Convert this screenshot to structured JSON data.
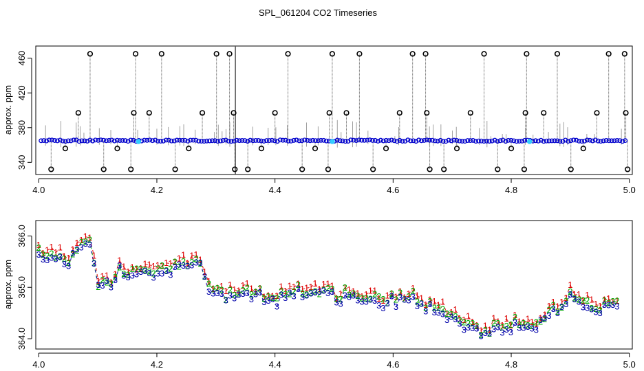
{
  "title": "SPL_061204  CO2 Timeseries",
  "colors": {
    "plot_frame": "#000000",
    "series1": "#dd0000",
    "series2": "#00aa00",
    "series3": "#0000aa",
    "raw_line": "#555555",
    "raw_point": "#0000cc",
    "highlight_point": "#33ccff",
    "outlier": "#000000"
  },
  "chart_data": [
    {
      "type": "scatter",
      "ylabel": "approx. ppm",
      "xlabel": "",
      "xlim": [
        3.995,
        5.005
      ],
      "ylim": [
        326,
        474
      ],
      "xticks": [
        "4.0",
        "4.2",
        "4.4",
        "4.6",
        "4.8",
        "5.0"
      ],
      "yticks": [
        "340",
        "380",
        "420",
        "460"
      ],
      "baseline_ppm": 365,
      "outliers": [
        {
          "x": 4.021,
          "y": 332
        },
        {
          "x": 4.045,
          "y": 356
        },
        {
          "x": 4.067,
          "y": 397
        },
        {
          "x": 4.087,
          "y": 465
        },
        {
          "x": 4.11,
          "y": 332
        },
        {
          "x": 4.133,
          "y": 356
        },
        {
          "x": 4.156,
          "y": 332
        },
        {
          "x": 4.161,
          "y": 397
        },
        {
          "x": 4.164,
          "y": 465
        },
        {
          "x": 4.187,
          "y": 397
        },
        {
          "x": 4.208,
          "y": 465
        },
        {
          "x": 4.231,
          "y": 332
        },
        {
          "x": 4.254,
          "y": 356
        },
        {
          "x": 4.277,
          "y": 397
        },
        {
          "x": 4.301,
          "y": 465
        },
        {
          "x": 4.323,
          "y": 465
        },
        {
          "x": 4.33,
          "y": 397
        },
        {
          "x": 4.332,
          "y": 332
        },
        {
          "x": 4.354,
          "y": 332
        },
        {
          "x": 4.377,
          "y": 356
        },
        {
          "x": 4.4,
          "y": 397
        },
        {
          "x": 4.422,
          "y": 465
        },
        {
          "x": 4.446,
          "y": 332
        },
        {
          "x": 4.468,
          "y": 356
        },
        {
          "x": 4.49,
          "y": 332
        },
        {
          "x": 4.492,
          "y": 397
        },
        {
          "x": 4.497,
          "y": 465
        },
        {
          "x": 4.521,
          "y": 397
        },
        {
          "x": 4.543,
          "y": 465
        },
        {
          "x": 4.566,
          "y": 332
        },
        {
          "x": 4.588,
          "y": 356
        },
        {
          "x": 4.611,
          "y": 397
        },
        {
          "x": 4.633,
          "y": 465
        },
        {
          "x": 4.655,
          "y": 465
        },
        {
          "x": 4.657,
          "y": 397
        },
        {
          "x": 4.662,
          "y": 332
        },
        {
          "x": 4.686,
          "y": 332
        },
        {
          "x": 4.708,
          "y": 356
        },
        {
          "x": 4.731,
          "y": 397
        },
        {
          "x": 4.754,
          "y": 465
        },
        {
          "x": 4.777,
          "y": 332
        },
        {
          "x": 4.8,
          "y": 356
        },
        {
          "x": 4.822,
          "y": 332
        },
        {
          "x": 4.824,
          "y": 397
        },
        {
          "x": 4.826,
          "y": 465
        },
        {
          "x": 4.855,
          "y": 397
        },
        {
          "x": 4.878,
          "y": 465
        },
        {
          "x": 4.901,
          "y": 332
        },
        {
          "x": 4.922,
          "y": 356
        },
        {
          "x": 4.945,
          "y": 397
        },
        {
          "x": 4.965,
          "y": 465
        },
        {
          "x": 4.992,
          "y": 465
        },
        {
          "x": 4.994,
          "y": 397
        },
        {
          "x": 4.997,
          "y": 332
        }
      ],
      "highlight_points": [
        {
          "x": 4.169,
          "y": 364
        },
        {
          "x": 4.497,
          "y": 364
        },
        {
          "x": 4.831,
          "y": 364
        }
      ]
    },
    {
      "type": "scatter",
      "ylabel": "approx. ppm",
      "xlabel": "",
      "xlim": [
        3.995,
        5.005
      ],
      "ylim": [
        363.8,
        366.3
      ],
      "xticks": [
        "4.0",
        "4.2",
        "4.4",
        "4.6",
        "4.8",
        "5.0"
      ],
      "yticks": [
        "364.0",
        "365.0",
        "366.0"
      ],
      "series": [
        {
          "marker": "1",
          "color": "#dd0000",
          "offset": 0.07
        },
        {
          "marker": "2",
          "color": "#00aa00",
          "offset": 0.0
        },
        {
          "marker": "3",
          "color": "#0000aa",
          "offset": -0.07
        }
      ],
      "trend": [
        [
          4.0,
          365.65
        ],
        [
          4.02,
          365.6
        ],
        [
          4.04,
          365.55
        ],
        [
          4.05,
          365.45
        ],
        [
          4.06,
          365.7
        ],
        [
          4.075,
          365.95
        ],
        [
          4.09,
          365.8
        ],
        [
          4.1,
          365.1
        ],
        [
          4.12,
          365.1
        ],
        [
          4.14,
          365.45
        ],
        [
          4.16,
          365.2
        ],
        [
          4.18,
          365.4
        ],
        [
          4.2,
          365.3
        ],
        [
          4.22,
          365.35
        ],
        [
          4.24,
          365.4
        ],
        [
          4.26,
          365.55
        ],
        [
          4.275,
          365.5
        ],
        [
          4.285,
          365.0
        ],
        [
          4.3,
          364.9
        ],
        [
          4.32,
          364.88
        ],
        [
          4.34,
          364.85
        ],
        [
          4.36,
          364.9
        ],
        [
          4.38,
          364.85
        ],
        [
          4.4,
          364.8
        ],
        [
          4.42,
          364.92
        ],
        [
          4.45,
          364.95
        ],
        [
          4.48,
          364.92
        ],
        [
          4.5,
          364.85
        ],
        [
          4.52,
          364.9
        ],
        [
          4.54,
          364.85
        ],
        [
          4.56,
          364.8
        ],
        [
          4.58,
          364.75
        ],
        [
          4.6,
          364.8
        ],
        [
          4.62,
          364.85
        ],
        [
          4.64,
          364.85
        ],
        [
          4.66,
          364.7
        ],
        [
          4.68,
          364.55
        ],
        [
          4.7,
          364.5
        ],
        [
          4.72,
          364.35
        ],
        [
          4.74,
          364.2
        ],
        [
          4.76,
          364.15
        ],
        [
          4.78,
          364.25
        ],
        [
          4.8,
          364.3
        ],
        [
          4.82,
          364.35
        ],
        [
          4.84,
          364.25
        ],
        [
          4.86,
          364.4
        ],
        [
          4.88,
          364.65
        ],
        [
          4.9,
          364.85
        ],
        [
          4.92,
          364.7
        ],
        [
          4.94,
          364.55
        ],
        [
          4.96,
          364.65
        ],
        [
          4.985,
          364.7
        ]
      ]
    }
  ]
}
